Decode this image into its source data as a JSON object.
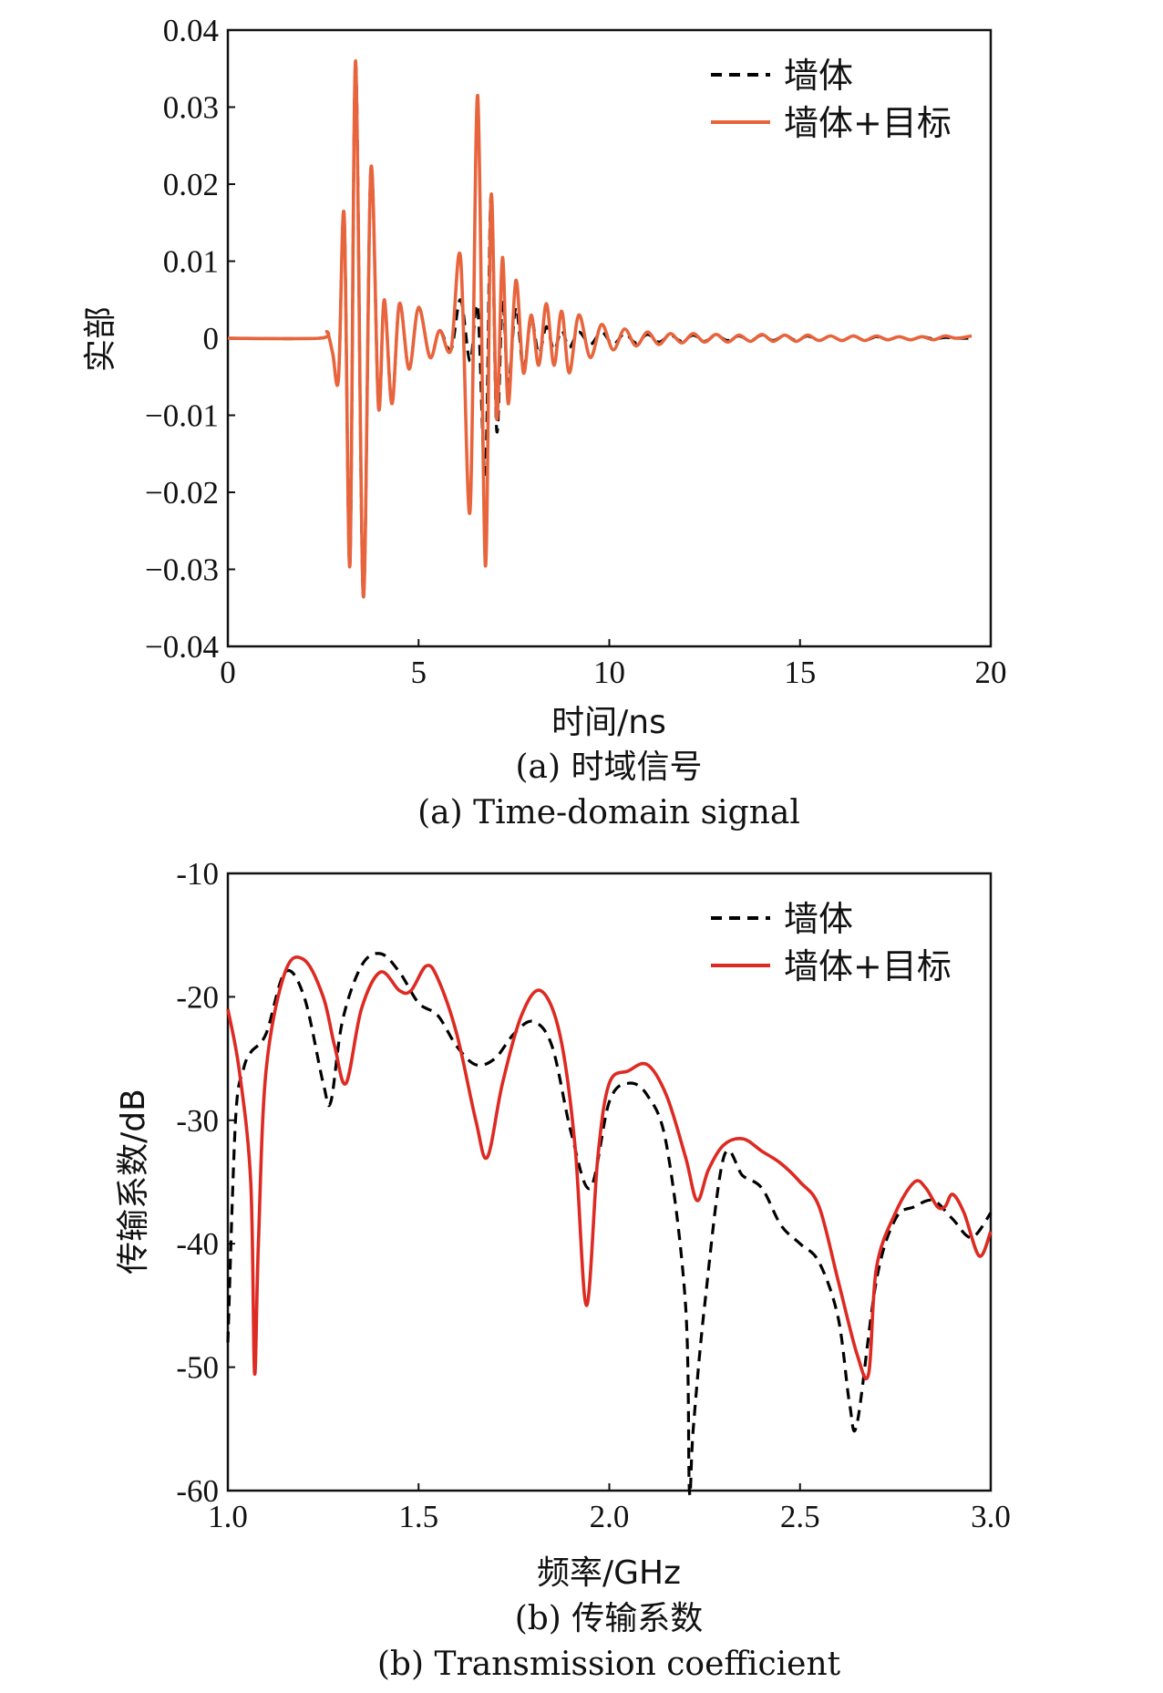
{
  "chart_data": [
    {
      "type": "line",
      "xlabel": "时间/ns",
      "ylabel": "实部",
      "xlim": [
        0,
        20
      ],
      "ylim": [
        -0.04,
        0.04
      ],
      "xticks": [
        "0",
        "5",
        "10",
        "15",
        "20"
      ],
      "yticks": [
        "0.04",
        "0.03",
        "0.02",
        "0.01",
        "0",
        "−0.01",
        "−0.02",
        "−0.03",
        "−0.04"
      ],
      "caption_cn": "(a) 时域信号",
      "caption_en": "(a) Time-domain signal",
      "legend_position": "top-right",
      "grid": false,
      "series": [
        {
          "name": "墙体",
          "color": "#000000",
          "style": "dashed",
          "x": [
            0,
            2.4,
            2.6,
            2.75,
            2.9,
            3.05,
            3.2,
            3.35,
            3.55,
            3.75,
            3.95,
            4.1,
            4.3,
            4.5,
            4.75,
            5.0,
            5.3,
            5.55,
            5.85,
            6.1,
            6.35,
            6.55,
            6.75,
            6.9,
            7.05,
            7.2,
            7.35,
            7.55,
            7.75,
            7.95,
            8.15,
            8.35,
            8.55,
            8.75,
            8.95,
            9.2,
            9.5,
            9.8,
            10.1,
            10.4,
            10.7,
            11.0,
            11.3,
            11.6,
            11.9,
            12.2,
            12.5,
            12.8,
            13.1,
            13.4,
            13.7,
            14.0,
            14.3,
            14.6,
            14.9,
            15.2,
            15.5,
            15.8,
            16.1,
            16.4,
            16.7,
            17.0,
            17.3,
            17.6,
            17.9,
            18.2,
            18.5,
            18.8,
            19.1,
            19.5
          ],
          "y": [
            0,
            0,
            0.0008,
            -0.002,
            -0.0052,
            0.016,
            -0.0295,
            0.036,
            -0.0335,
            0.022,
            -0.009,
            0.005,
            -0.0085,
            0.0045,
            -0.004,
            0.004,
            -0.0025,
            0.001,
            -0.0015,
            0.005,
            -0.003,
            0.004,
            -0.0175,
            0.0185,
            -0.012,
            0.005,
            -0.006,
            0.004,
            -0.004,
            0.0025,
            -0.002,
            0.0015,
            -0.0015,
            0.001,
            -0.0012,
            0.0008,
            -0.0008,
            0.0008,
            -0.0008,
            0.0006,
            -0.0006,
            0.0005,
            -0.0005,
            0.0004,
            -0.0004,
            0.0004,
            -0.0004,
            0.0004,
            -0.0003,
            0.0003,
            -0.0003,
            0.0004,
            -0.0003,
            0.0004,
            -0.0003,
            0.0003,
            -0.0003,
            0.0003,
            -0.0003,
            0.0003,
            -0.0003,
            0.0002,
            -0.0002,
            0.0002,
            -0.0002,
            0.0002,
            -0.0001,
            0.0001,
            0,
            0
          ]
        },
        {
          "name": "墙体+目标",
          "color": "#e8643c",
          "style": "solid",
          "x": [
            0,
            2.4,
            2.6,
            2.75,
            2.9,
            3.05,
            3.2,
            3.35,
            3.55,
            3.75,
            3.95,
            4.1,
            4.3,
            4.5,
            4.75,
            5.0,
            5.3,
            5.55,
            5.85,
            6.1,
            6.35,
            6.55,
            6.75,
            6.9,
            7.05,
            7.2,
            7.35,
            7.55,
            7.75,
            7.95,
            8.15,
            8.35,
            8.55,
            8.75,
            8.95,
            9.2,
            9.5,
            9.8,
            10.1,
            10.4,
            10.7,
            11.0,
            11.3,
            11.6,
            11.9,
            12.2,
            12.5,
            12.8,
            13.1,
            13.4,
            13.7,
            14.0,
            14.3,
            14.6,
            14.9,
            15.2,
            15.5,
            15.8,
            16.1,
            16.4,
            16.7,
            17.0,
            17.3,
            17.6,
            17.9,
            18.2,
            18.5,
            18.8,
            19.1,
            19.5
          ],
          "y": [
            0,
            0,
            0.0008,
            -0.002,
            -0.0052,
            0.016,
            -0.0295,
            0.036,
            -0.0335,
            0.022,
            -0.009,
            0.005,
            -0.0085,
            0.0045,
            -0.004,
            0.004,
            -0.0025,
            0.001,
            -0.0015,
            0.0105,
            -0.0225,
            0.0315,
            -0.0295,
            0.0185,
            -0.0105,
            0.0105,
            -0.0085,
            0.0075,
            -0.0045,
            0.003,
            -0.0035,
            0.0045,
            -0.0035,
            0.0035,
            -0.0045,
            0.003,
            -0.0025,
            0.0018,
            -0.0015,
            0.0012,
            -0.001,
            0.0008,
            -0.0008,
            0.0006,
            -0.0006,
            0.0006,
            -0.0005,
            0.0005,
            -0.0005,
            0.0004,
            -0.0004,
            0.0005,
            -0.0004,
            0.0004,
            -0.0004,
            0.0004,
            -0.0003,
            0.0003,
            -0.0003,
            0.0003,
            -0.0003,
            0.0003,
            -0.0002,
            0.0002,
            -0.0002,
            0.0002,
            -0.0002,
            0.0003,
            0,
            0.0003
          ]
        }
      ]
    },
    {
      "type": "line",
      "xlabel": "频率/GHz",
      "ylabel": "传输系数/dB",
      "xlim": [
        1.0,
        3.0
      ],
      "ylim": [
        -60,
        -10
      ],
      "xticks": [
        "1.0",
        "1.5",
        "2.0",
        "2.5",
        "3.0"
      ],
      "yticks": [
        "-10",
        "-20",
        "-30",
        "-40",
        "-50",
        "-60"
      ],
      "caption_cn": "(b) 传输系数",
      "caption_en": "(b) Transmission coefficient",
      "legend_position": "top-right",
      "grid": false,
      "series": [
        {
          "name": "墙体",
          "color": "#000000",
          "style": "dashed",
          "x": [
            1.0,
            1.02,
            1.04,
            1.06,
            1.1,
            1.15,
            1.2,
            1.25,
            1.27,
            1.3,
            1.35,
            1.4,
            1.45,
            1.5,
            1.55,
            1.6,
            1.65,
            1.7,
            1.75,
            1.8,
            1.85,
            1.9,
            1.95,
            2.0,
            2.05,
            2.1,
            2.15,
            2.2,
            2.21,
            2.22,
            2.25,
            2.3,
            2.35,
            2.4,
            2.45,
            2.5,
            2.55,
            2.6,
            2.63,
            2.65,
            2.7,
            2.75,
            2.8,
            2.85,
            2.9,
            2.95,
            3.0
          ],
          "y": [
            -48,
            -30,
            -26,
            -24.5,
            -23,
            -18,
            -20,
            -27,
            -28.5,
            -22,
            -17.5,
            -16.5,
            -18,
            -20.5,
            -21.5,
            -24,
            -25.5,
            -25,
            -23,
            -22,
            -24,
            -31,
            -35.5,
            -28.5,
            -27,
            -28,
            -32,
            -45,
            -60,
            -55,
            -45,
            -33,
            -34.5,
            -35.5,
            -38.5,
            -40,
            -41.5,
            -46,
            -53,
            -54.5,
            -43,
            -38,
            -37,
            -36.5,
            -38,
            -39.5,
            -37.5
          ]
        },
        {
          "name": "墙体+目标",
          "color": "#dd2a22",
          "style": "solid",
          "x": [
            1.0,
            1.03,
            1.06,
            1.07,
            1.08,
            1.1,
            1.15,
            1.2,
            1.25,
            1.28,
            1.31,
            1.35,
            1.4,
            1.45,
            1.48,
            1.52,
            1.55,
            1.6,
            1.65,
            1.68,
            1.72,
            1.77,
            1.82,
            1.87,
            1.91,
            1.94,
            1.97,
            2.0,
            2.05,
            2.1,
            2.15,
            2.2,
            2.23,
            2.26,
            2.3,
            2.35,
            2.4,
            2.45,
            2.5,
            2.55,
            2.6,
            2.65,
            2.68,
            2.7,
            2.75,
            2.8,
            2.83,
            2.86,
            2.88,
            2.9,
            2.93,
            2.97,
            3.0
          ],
          "y": [
            -21,
            -26,
            -35,
            -50.5,
            -40,
            -26,
            -18,
            -17,
            -20,
            -24,
            -27,
            -21,
            -18,
            -19.5,
            -19.5,
            -17.5,
            -18.5,
            -23,
            -30,
            -33,
            -27,
            -21.5,
            -19.5,
            -23,
            -32,
            -45,
            -33,
            -27,
            -26,
            -25.5,
            -28,
            -33,
            -36.5,
            -34,
            -32,
            -31.5,
            -32.5,
            -33.5,
            -35,
            -37,
            -43,
            -49,
            -50.5,
            -42,
            -37.5,
            -35,
            -35.5,
            -37,
            -37,
            -36,
            -37.5,
            -41,
            -39
          ]
        }
      ]
    }
  ]
}
